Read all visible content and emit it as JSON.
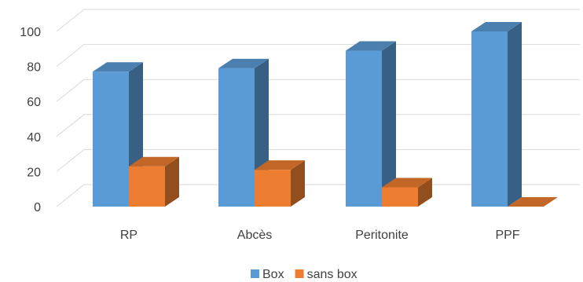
{
  "chart_data": {
    "type": "bar",
    "categories": [
      "RP",
      "Abcès",
      "Peritonite",
      "PPF"
    ],
    "series": [
      {
        "name": "Box",
        "values": [
          77,
          79,
          89,
          100
        ],
        "color": "#5B9BD5"
      },
      {
        "name": "sans box",
        "values": [
          23,
          21,
          11,
          0
        ],
        "color": "#ED7D31"
      }
    ],
    "ylim": [
      0,
      100
    ],
    "yticks": [
      0,
      20,
      40,
      60,
      80,
      100
    ],
    "grid": true,
    "legend_position": "bottom",
    "style": "3d-column"
  }
}
